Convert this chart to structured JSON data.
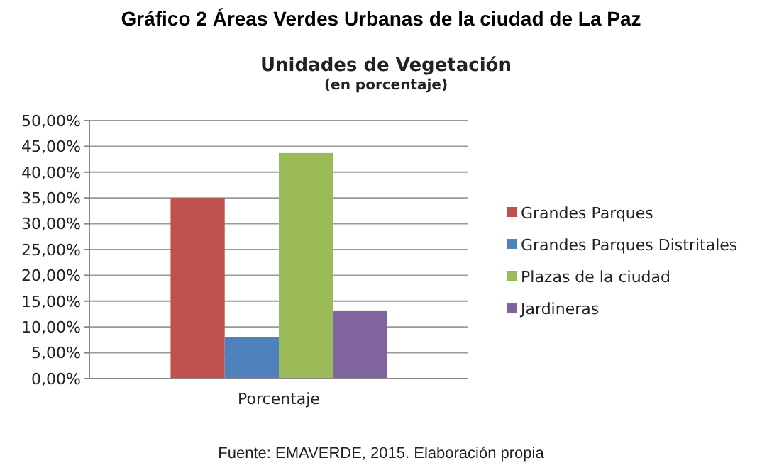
{
  "chart_data": {
    "type": "bar",
    "title": "Gráfico 2 Áreas Verdes Urbanas de la ciudad de La Paz",
    "subtitle": "Unidades de Vegetación\n(en porcentaje)",
    "categories": [
      "Porcentaje"
    ],
    "series": [
      {
        "name": "Grandes Parques",
        "color": "#c0504d",
        "values": [
          35
        ]
      },
      {
        "name": "Grandes Parques Distritales",
        "color": "#4f81bd",
        "values": [
          8
        ]
      },
      {
        "name": "Plazas de la ciudad",
        "color": "#9bbb59",
        "values": [
          43.7
        ]
      },
      {
        "name": "Jardineras",
        "color": "#8064a2",
        "values": [
          13.2
        ]
      }
    ],
    "ylim": [
      0,
      50
    ],
    "yticks": [
      {
        "value": 0,
        "label": "0,00%"
      },
      {
        "value": 5,
        "label": "5,00%"
      },
      {
        "value": 10,
        "label": "10,00%"
      },
      {
        "value": 15,
        "label": "15,00%"
      },
      {
        "value": 20,
        "label": "20,00%"
      },
      {
        "value": 25,
        "label": "25,00%"
      },
      {
        "value": 30,
        "label": "30,00%"
      },
      {
        "value": 35,
        "label": "35,00%"
      },
      {
        "value": 40,
        "label": "40,00%"
      },
      {
        "value": 45,
        "label": "45,00%"
      },
      {
        "value": 50,
        "label": "50,00%"
      }
    ],
    "grid": "y",
    "legend": "right",
    "annotations": [
      "Fuente: EMAVERDE, 2015. Elaboración propia"
    ]
  }
}
